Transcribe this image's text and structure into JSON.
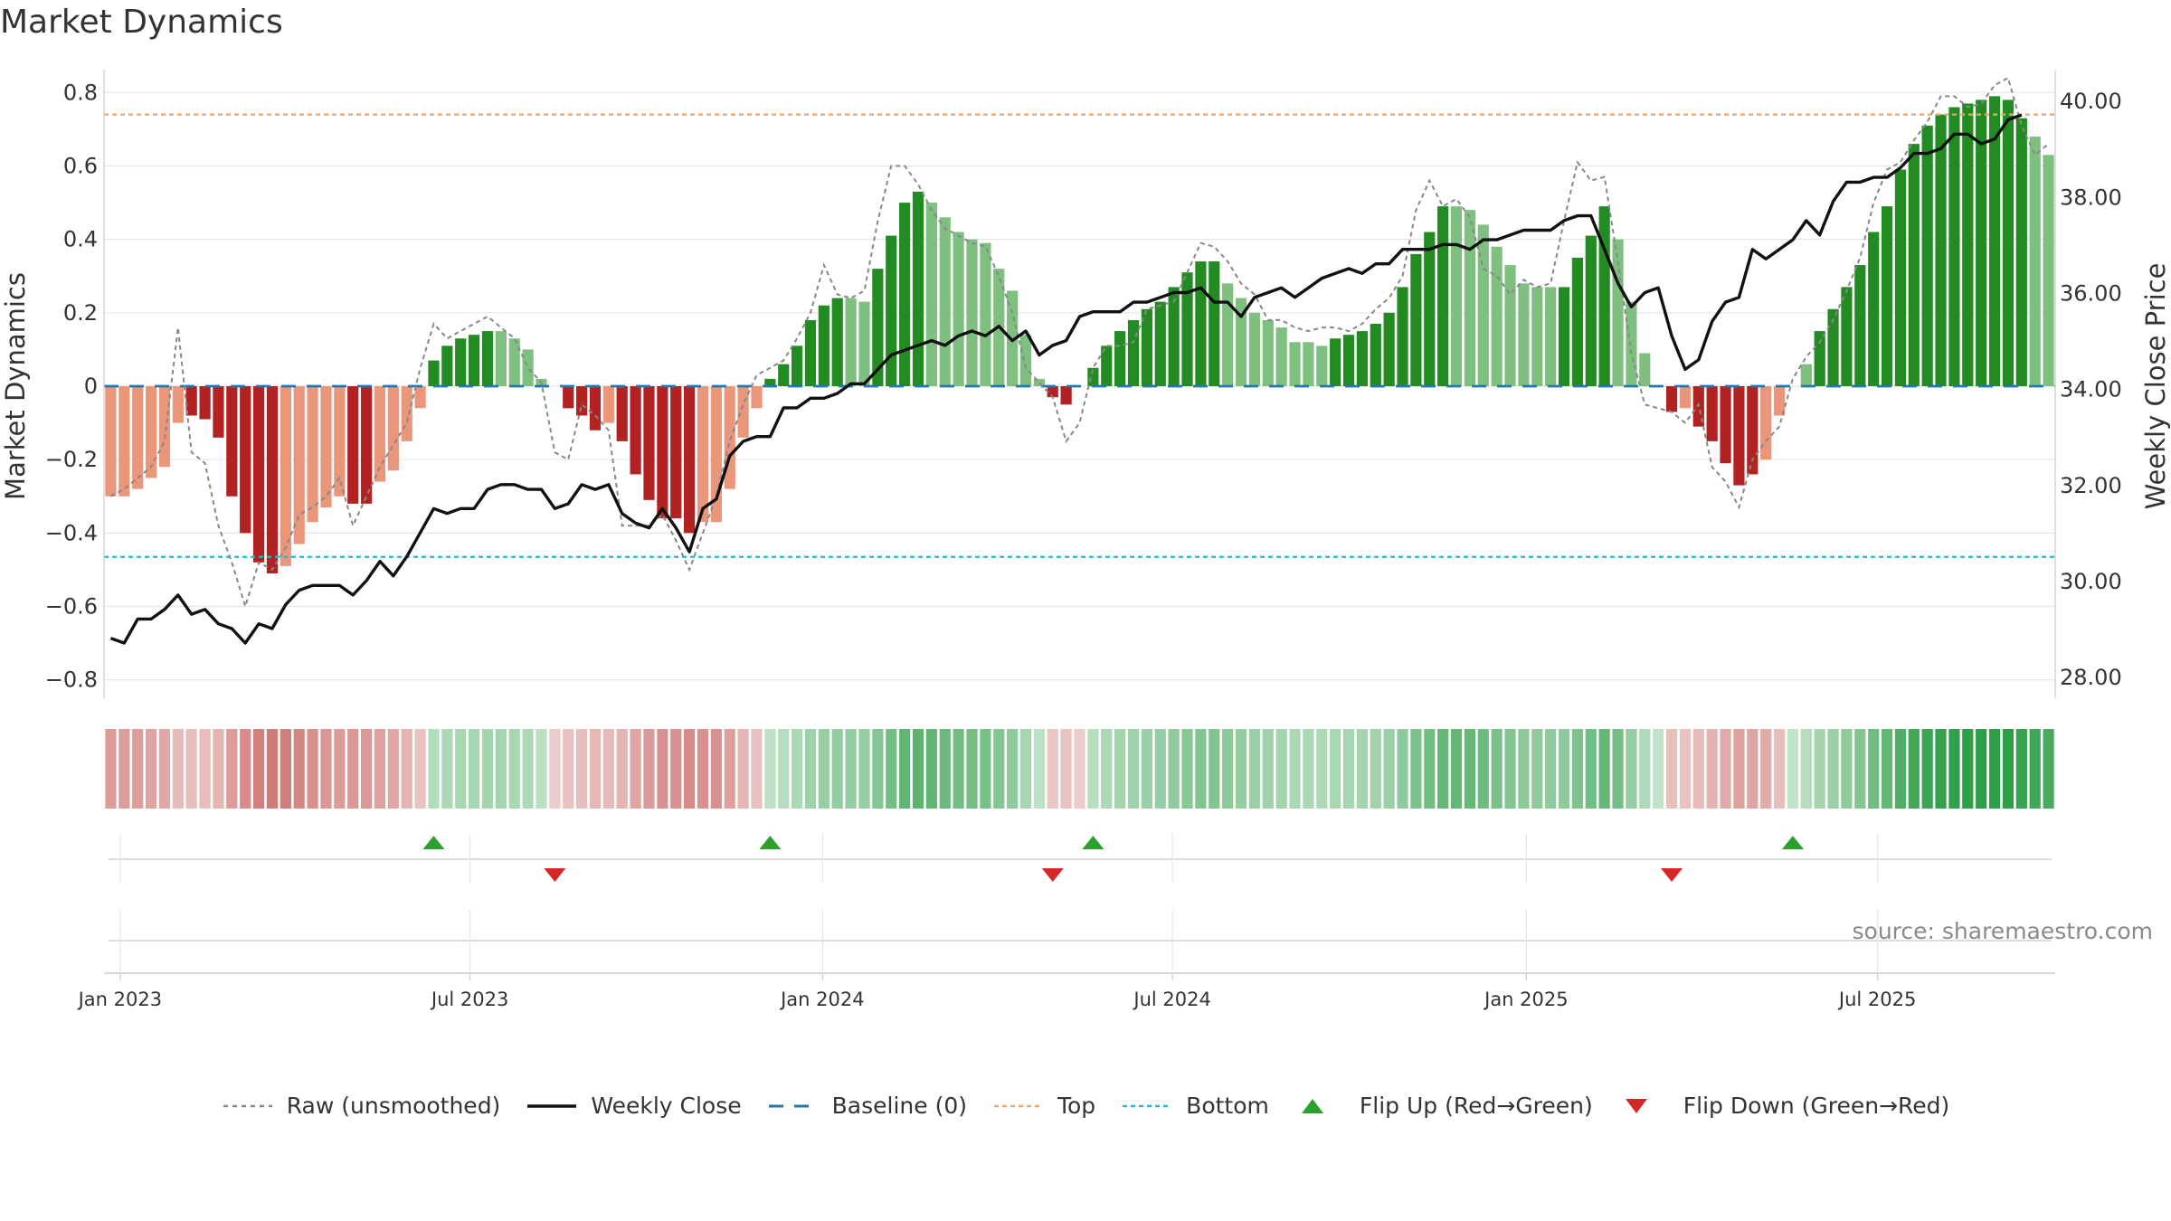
{
  "title": "Market Dynamics",
  "source_note": "source: sharemaestro.com",
  "colors": {
    "green_strong": "#228B22",
    "green_light": "#7FBF7F",
    "red_strong": "#B22222",
    "red_light": "#E9967A",
    "close_line": "#111111",
    "raw_line": "#888888",
    "baseline": "#1F77B4",
    "top": "#F4A460",
    "bottom": "#17BECF",
    "flip_up": "#2CA02C",
    "flip_down": "#D62728"
  },
  "legend": [
    {
      "label": "Raw (unsmoothed)",
      "icon": "dotted-gray-line"
    },
    {
      "label": "Weekly Close",
      "icon": "solid-black-line"
    },
    {
      "label": "Baseline (0)",
      "icon": "dashed-blue-line"
    },
    {
      "label": "Top",
      "icon": "dotted-orange-line"
    },
    {
      "label": "Bottom",
      "icon": "dotted-cyan-line"
    },
    {
      "label": "Flip Up (Red→Green)",
      "icon": "green-up-triangle"
    },
    {
      "label": "Flip Down (Green→Red)",
      "icon": "red-down-triangle"
    }
  ],
  "chart_data": {
    "type": "bar",
    "title": "Market Dynamics",
    "ylabel": "Market Dynamics",
    "y2label": "Weekly Close Price",
    "ylim": [
      -0.85,
      0.85
    ],
    "y2lim": [
      27.55,
      40.55
    ],
    "yticks": [
      "−0.8",
      "−0.6",
      "−0.4",
      "−0.2",
      "0",
      "0.2",
      "0.4",
      "0.6",
      "0.8"
    ],
    "y2ticks": [
      "28.00",
      "30.00",
      "32.00",
      "34.00",
      "36.00",
      "38.00",
      "40.00"
    ],
    "xticks": [
      "Jan 2023",
      "Jul 2023",
      "Jan 2024",
      "Jul 2024",
      "Jan 2025",
      "Jul 2025"
    ],
    "top_line": 0.74,
    "bottom_line": -0.465,
    "baseline": 0,
    "series": [
      {
        "name": "Market Dynamics",
        "kind": "bar",
        "values": [
          -0.3,
          -0.3,
          -0.28,
          -0.25,
          -0.22,
          -0.1,
          -0.08,
          -0.09,
          -0.14,
          -0.3,
          -0.4,
          -0.48,
          -0.51,
          -0.49,
          -0.43,
          -0.37,
          -0.33,
          -0.3,
          -0.32,
          -0.32,
          -0.26,
          -0.23,
          -0.15,
          -0.06,
          0.07,
          0.11,
          0.13,
          0.14,
          0.15,
          0.15,
          0.13,
          0.1,
          0.02,
          0,
          -0.06,
          -0.08,
          -0.12,
          -0.1,
          -0.15,
          -0.24,
          -0.31,
          -0.36,
          -0.36,
          -0.4,
          -0.37,
          -0.37,
          -0.28,
          -0.14,
          -0.06,
          0.02,
          0.06,
          0.11,
          0.18,
          0.22,
          0.24,
          0.24,
          0.23,
          0.32,
          0.41,
          0.5,
          0.53,
          0.5,
          0.46,
          0.42,
          0.4,
          0.39,
          0.32,
          0.26,
          0.14,
          0.02,
          -0.03,
          -0.05,
          0,
          0.05,
          0.11,
          0.15,
          0.18,
          0.21,
          0.23,
          0.27,
          0.31,
          0.34,
          0.34,
          0.28,
          0.24,
          0.2,
          0.18,
          0.16,
          0.12,
          0.12,
          0.11,
          0.13,
          0.14,
          0.15,
          0.17,
          0.2,
          0.27,
          0.36,
          0.42,
          0.49,
          0.49,
          0.48,
          0.44,
          0.38,
          0.33,
          0.28,
          0.27,
          0.27,
          0.27,
          0.35,
          0.41,
          0.49,
          0.4,
          0.23,
          0.09,
          0,
          -0.07,
          -0.06,
          -0.11,
          -0.15,
          -0.21,
          -0.27,
          -0.24,
          -0.2,
          -0.08,
          0,
          0.06,
          0.15,
          0.21,
          0.27,
          0.33,
          0.42,
          0.49,
          0.59,
          0.66,
          0.71,
          0.74,
          0.76,
          0.77,
          0.78,
          0.79,
          0.78,
          0.73,
          0.68,
          0.63
        ],
        "shade": [
          "L",
          "L",
          "L",
          "L",
          "L",
          "L",
          "S",
          "S",
          "S",
          "S",
          "S",
          "S",
          "S",
          "L",
          "L",
          "L",
          "L",
          "L",
          "S",
          "S",
          "L",
          "L",
          "L",
          "L",
          "S",
          "S",
          "S",
          "S",
          "S",
          "L",
          "L",
          "L",
          "L",
          "L",
          "S",
          "S",
          "S",
          "L",
          "S",
          "S",
          "S",
          "S",
          "S",
          "S",
          "L",
          "L",
          "L",
          "L",
          "L",
          "S",
          "S",
          "S",
          "S",
          "S",
          "S",
          "L",
          "L",
          "S",
          "S",
          "S",
          "S",
          "L",
          "L",
          "L",
          "L",
          "L",
          "L",
          "L",
          "L",
          "L",
          "S",
          "S",
          "L",
          "S",
          "S",
          "S",
          "S",
          "S",
          "S",
          "S",
          "S",
          "S",
          "S",
          "L",
          "L",
          "L",
          "L",
          "L",
          "L",
          "L",
          "L",
          "S",
          "S",
          "S",
          "S",
          "S",
          "S",
          "S",
          "S",
          "S",
          "L",
          "L",
          "L",
          "L",
          "L",
          "L",
          "L",
          "L",
          "S",
          "S",
          "S",
          "S",
          "L",
          "L",
          "L",
          "L",
          "S",
          "L",
          "S",
          "S",
          "S",
          "S",
          "S",
          "L",
          "L",
          "L",
          "L",
          "S",
          "S",
          "S",
          "S",
          "S",
          "S",
          "S",
          "S",
          "S",
          "S",
          "S",
          "S",
          "S",
          "S",
          "S",
          "S",
          "L",
          "L",
          "L",
          "L"
        ]
      },
      {
        "name": "Raw (unsmoothed)",
        "kind": "line",
        "values": [
          -0.3,
          -0.28,
          -0.25,
          -0.22,
          -0.15,
          0.16,
          -0.18,
          -0.21,
          -0.38,
          -0.48,
          -0.6,
          -0.48,
          -0.5,
          -0.44,
          -0.35,
          -0.33,
          -0.3,
          -0.25,
          -0.38,
          -0.3,
          -0.22,
          -0.16,
          -0.1,
          0.05,
          0.17,
          0.13,
          0.15,
          0.17,
          0.19,
          0.16,
          0.13,
          0.05,
          0.01,
          -0.18,
          -0.2,
          -0.05,
          -0.08,
          -0.12,
          -0.38,
          -0.38,
          -0.38,
          -0.35,
          -0.42,
          -0.5,
          -0.4,
          -0.3,
          -0.15,
          -0.05,
          0.03,
          0.05,
          0.07,
          0.13,
          0.2,
          0.33,
          0.25,
          0.24,
          0.26,
          0.45,
          0.6,
          0.6,
          0.55,
          0.48,
          0.43,
          0.41,
          0.39,
          0.38,
          0.3,
          0.2,
          0.05,
          0.01,
          -0.03,
          -0.15,
          -0.1,
          0.05,
          0.11,
          0.11,
          0.12,
          0.21,
          0.22,
          0.23,
          0.31,
          0.39,
          0.38,
          0.34,
          0.28,
          0.25,
          0.18,
          0.18,
          0.16,
          0.15,
          0.16,
          0.16,
          0.15,
          0.17,
          0.21,
          0.24,
          0.3,
          0.48,
          0.56,
          0.49,
          0.51,
          0.46,
          0.32,
          0.3,
          0.25,
          0.29,
          0.27,
          0.28,
          0.45,
          0.61,
          0.56,
          0.57,
          0.34,
          0.09,
          -0.05,
          -0.06,
          -0.07,
          -0.1,
          -0.05,
          -0.22,
          -0.26,
          -0.33,
          -0.2,
          -0.15,
          -0.11,
          0.02,
          0.08,
          0.12,
          0.18,
          0.26,
          0.35,
          0.5,
          0.59,
          0.61,
          0.67,
          0.72,
          0.79,
          0.79,
          0.76,
          0.77,
          0.82,
          0.84,
          0.71,
          0.63,
          0.66
        ]
      },
      {
        "name": "Weekly Close",
        "kind": "line",
        "axis": "right",
        "values": [
          28.8,
          28.7,
          29.2,
          29.2,
          29.4,
          29.7,
          29.3,
          29.4,
          29.1,
          29.0,
          28.7,
          29.1,
          29.0,
          29.5,
          29.8,
          29.9,
          29.9,
          29.9,
          29.7,
          30.0,
          30.4,
          30.1,
          30.5,
          31.0,
          31.5,
          31.4,
          31.5,
          31.5,
          31.9,
          32.0,
          32.0,
          31.9,
          31.9,
          31.5,
          31.6,
          32.0,
          31.9,
          32.0,
          31.4,
          31.2,
          31.1,
          31.5,
          31.1,
          30.6,
          31.5,
          31.7,
          32.6,
          32.9,
          33.0,
          33.0,
          33.6,
          33.6,
          33.8,
          33.8,
          33.9,
          34.1,
          34.1,
          34.4,
          34.7,
          34.8,
          34.9,
          35.0,
          34.9,
          35.1,
          35.2,
          35.1,
          35.3,
          35.0,
          35.2,
          34.7,
          34.9,
          35.0,
          35.5,
          35.6,
          35.6,
          35.6,
          35.8,
          35.8,
          35.9,
          36.0,
          36.0,
          36.1,
          35.8,
          35.8,
          35.5,
          35.9,
          36.0,
          36.1,
          35.9,
          36.1,
          36.3,
          36.4,
          36.5,
          36.4,
          36.6,
          36.6,
          36.9,
          36.9,
          36.9,
          37.0,
          37.0,
          36.9,
          37.1,
          37.1,
          37.2,
          37.3,
          37.3,
          37.3,
          37.5,
          37.6,
          37.6,
          36.9,
          36.2,
          35.7,
          36.0,
          36.1,
          35.1,
          34.4,
          34.6,
          35.4,
          35.8,
          35.9,
          36.9,
          36.7,
          36.9,
          37.1,
          37.5,
          37.2,
          37.9,
          38.3,
          38.3,
          38.4,
          38.4,
          38.6,
          38.9,
          38.9,
          39.0,
          39.3,
          39.3,
          39.1,
          39.2,
          39.6,
          39.7
        ]
      }
    ],
    "flip_up_weeks": [
      24,
      49,
      73,
      125
    ],
    "flip_down_weeks": [
      33,
      70,
      116
    ],
    "strip": [
      {
        "side": "red",
        "weeks": [
          0,
          24
        ]
      },
      {
        "side": "green",
        "weeks": [
          24,
          33
        ]
      },
      {
        "side": "red",
        "weeks": [
          33,
          49
        ]
      },
      {
        "side": "green",
        "weeks": [
          49,
          70
        ]
      },
      {
        "side": "red",
        "weeks": [
          70,
          73
        ]
      },
      {
        "side": "green",
        "weeks": [
          73,
          116
        ]
      },
      {
        "side": "red",
        "weeks": [
          116,
          125
        ]
      },
      {
        "side": "green",
        "weeks": [
          125,
          145
        ]
      }
    ]
  }
}
